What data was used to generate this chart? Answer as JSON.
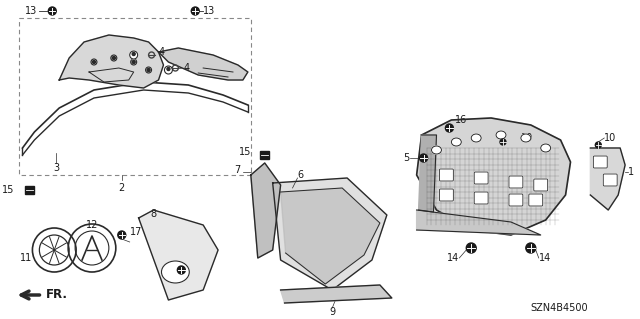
{
  "bg_color": "#ffffff",
  "diagram_code": "SZN4B4500",
  "fr_label": "FR.",
  "line_color": "#2a2a2a",
  "text_color": "#1a1a1a",
  "figsize": [
    6.4,
    3.19
  ],
  "dpi": 100
}
